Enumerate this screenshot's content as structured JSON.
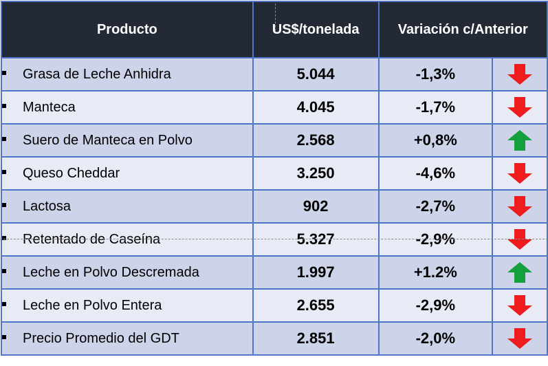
{
  "table": {
    "headers": {
      "product": "Producto",
      "price": "US$/tonelada",
      "change": "Variación c/Anterior"
    },
    "rows": [
      {
        "product": "Grasa de Leche Anhidra",
        "price": "5.044",
        "change": "-1,3%",
        "direction": "down"
      },
      {
        "product": "Manteca",
        "price": "4.045",
        "change": "-1,7%",
        "direction": "down"
      },
      {
        "product": "Suero de Manteca en Polvo",
        "price": "2.568",
        "change": "+0,8%",
        "direction": "up"
      },
      {
        "product": "Queso Cheddar",
        "price": "3.250",
        "change": "-4,6%",
        "direction": "down"
      },
      {
        "product": "Lactosa",
        "price": "902",
        "change": "-2,7%",
        "direction": "down"
      },
      {
        "product": "Retentado de Caseína",
        "price": "5.327",
        "change": "-2,9%",
        "direction": "down"
      },
      {
        "product": "Leche en Polvo Descremada",
        "price": "1.997",
        "change": "+1.2%",
        "direction": "up"
      },
      {
        "product": "Leche en Polvo Entera",
        "price": "2.655",
        "change": "-2,9%",
        "direction": "down"
      },
      {
        "product": "Precio Promedio del GDT",
        "price": "2.851",
        "change": "-2,0%",
        "direction": "down"
      }
    ]
  },
  "colors": {
    "header_bg": "#242a35",
    "border": "#4f74c8",
    "row_odd": "#cdd3e8",
    "row_even": "#e8ebf5",
    "arrow_down": "#ee1c1c",
    "arrow_up": "#14a03c"
  },
  "icons": {
    "down": "arrow-down-icon",
    "up": "arrow-up-icon"
  }
}
